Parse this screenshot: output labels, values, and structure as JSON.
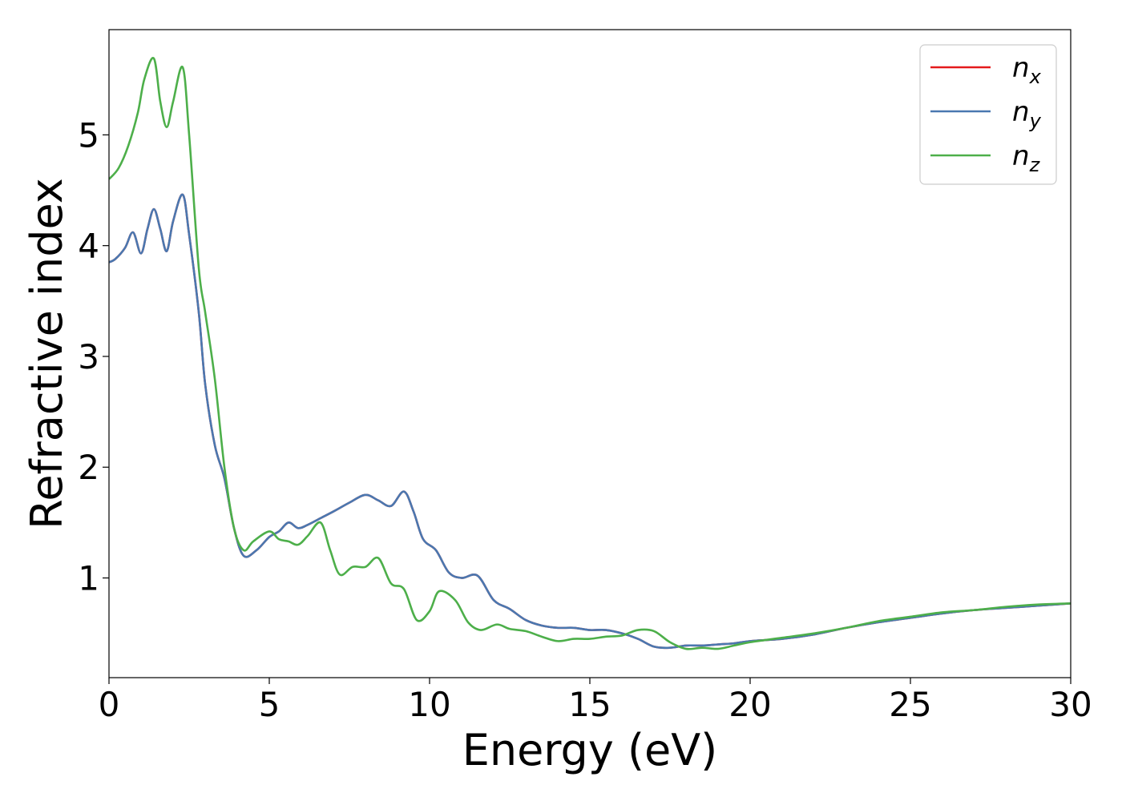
{
  "chart_data": {
    "type": "line",
    "xlabel": "Energy (eV)",
    "ylabel": "Refractive index",
    "xlim": [
      0,
      30
    ],
    "ylim": [
      0.1,
      5.95
    ],
    "x_ticks": [
      0,
      5,
      10,
      15,
      20,
      25,
      30
    ],
    "y_ticks": [
      1,
      2,
      3,
      4,
      5
    ],
    "grid": false,
    "legend_position": "top-right",
    "series": [
      {
        "name": "n_x",
        "legend_base": "n",
        "legend_sub": "x",
        "color": "#e41a1c",
        "x": [
          0,
          0.2,
          0.5,
          0.75,
          1.0,
          1.2,
          1.4,
          1.6,
          1.8,
          2.0,
          2.3,
          2.5,
          2.8,
          3.0,
          3.3,
          3.6,
          3.9,
          4.2,
          4.6,
          5.0,
          5.3,
          5.6,
          5.9,
          6.2,
          6.6,
          7.0,
          7.5,
          8.0,
          8.4,
          8.8,
          9.2,
          9.5,
          9.8,
          10.2,
          10.6,
          11.0,
          11.5,
          12.0,
          12.5,
          13.0,
          13.5,
          14.0,
          14.5,
          15.0,
          15.5,
          16.0,
          16.5,
          17.0,
          17.5,
          18.0,
          18.5,
          19.0,
          19.5,
          20.0,
          21.0,
          22.0,
          23.0,
          24.0,
          25.0,
          26.0,
          27.0,
          28.0,
          29.0,
          30.0
        ],
        "y": [
          3.85,
          3.88,
          3.98,
          4.12,
          3.93,
          4.15,
          4.33,
          4.15,
          3.95,
          4.22,
          4.46,
          4.1,
          3.4,
          2.75,
          2.2,
          1.9,
          1.45,
          1.2,
          1.25,
          1.37,
          1.42,
          1.5,
          1.45,
          1.48,
          1.54,
          1.6,
          1.68,
          1.75,
          1.7,
          1.65,
          1.78,
          1.6,
          1.35,
          1.25,
          1.05,
          1.0,
          1.02,
          0.8,
          0.72,
          0.62,
          0.57,
          0.55,
          0.55,
          0.53,
          0.53,
          0.5,
          0.45,
          0.38,
          0.37,
          0.39,
          0.39,
          0.4,
          0.41,
          0.43,
          0.45,
          0.49,
          0.55,
          0.6,
          0.64,
          0.68,
          0.71,
          0.73,
          0.75,
          0.77
        ]
      },
      {
        "name": "n_y",
        "legend_base": "n",
        "legend_sub": "y",
        "color": "#4a78b0",
        "x": [
          0,
          0.2,
          0.5,
          0.75,
          1.0,
          1.2,
          1.4,
          1.6,
          1.8,
          2.0,
          2.3,
          2.5,
          2.8,
          3.0,
          3.3,
          3.6,
          3.9,
          4.2,
          4.6,
          5.0,
          5.3,
          5.6,
          5.9,
          6.2,
          6.6,
          7.0,
          7.5,
          8.0,
          8.4,
          8.8,
          9.2,
          9.5,
          9.8,
          10.2,
          10.6,
          11.0,
          11.5,
          12.0,
          12.5,
          13.0,
          13.5,
          14.0,
          14.5,
          15.0,
          15.5,
          16.0,
          16.5,
          17.0,
          17.5,
          18.0,
          18.5,
          19.0,
          19.5,
          20.0,
          21.0,
          22.0,
          23.0,
          24.0,
          25.0,
          26.0,
          27.0,
          28.0,
          29.0,
          30.0
        ],
        "y": [
          3.85,
          3.88,
          3.98,
          4.12,
          3.93,
          4.15,
          4.33,
          4.15,
          3.95,
          4.22,
          4.46,
          4.1,
          3.4,
          2.75,
          2.2,
          1.9,
          1.45,
          1.2,
          1.25,
          1.37,
          1.42,
          1.5,
          1.45,
          1.48,
          1.54,
          1.6,
          1.68,
          1.75,
          1.7,
          1.65,
          1.78,
          1.6,
          1.35,
          1.25,
          1.05,
          1.0,
          1.02,
          0.8,
          0.72,
          0.62,
          0.57,
          0.55,
          0.55,
          0.53,
          0.53,
          0.5,
          0.45,
          0.38,
          0.37,
          0.39,
          0.39,
          0.4,
          0.41,
          0.43,
          0.45,
          0.49,
          0.55,
          0.6,
          0.64,
          0.68,
          0.71,
          0.73,
          0.75,
          0.77
        ]
      },
      {
        "name": "n_z",
        "legend_base": "n",
        "legend_sub": "z",
        "color": "#4daf4a",
        "x": [
          0,
          0.3,
          0.6,
          0.9,
          1.1,
          1.4,
          1.6,
          1.8,
          2.0,
          2.3,
          2.5,
          2.8,
          3.0,
          3.3,
          3.6,
          3.9,
          4.2,
          4.5,
          5.0,
          5.3,
          5.6,
          5.9,
          6.2,
          6.6,
          6.9,
          7.2,
          7.6,
          8.0,
          8.4,
          8.8,
          9.2,
          9.6,
          10.0,
          10.3,
          10.8,
          11.2,
          11.6,
          12.1,
          12.5,
          13.0,
          13.5,
          14.0,
          14.5,
          15.0,
          15.5,
          16.0,
          16.5,
          17.0,
          17.5,
          18.0,
          18.5,
          19.0,
          19.5,
          20.0,
          21.0,
          22.0,
          23.0,
          24.0,
          25.0,
          26.0,
          27.0,
          28.0,
          29.0,
          30.0
        ],
        "y": [
          4.6,
          4.7,
          4.9,
          5.2,
          5.5,
          5.69,
          5.3,
          5.07,
          5.3,
          5.61,
          5.0,
          3.8,
          3.4,
          2.8,
          2.0,
          1.45,
          1.25,
          1.33,
          1.42,
          1.35,
          1.33,
          1.3,
          1.38,
          1.5,
          1.25,
          1.03,
          1.1,
          1.1,
          1.18,
          0.95,
          0.9,
          0.62,
          0.7,
          0.88,
          0.8,
          0.6,
          0.53,
          0.58,
          0.54,
          0.52,
          0.47,
          0.43,
          0.45,
          0.45,
          0.47,
          0.48,
          0.53,
          0.52,
          0.42,
          0.36,
          0.37,
          0.36,
          0.39,
          0.42,
          0.46,
          0.5,
          0.55,
          0.61,
          0.65,
          0.69,
          0.71,
          0.74,
          0.76,
          0.77
        ]
      }
    ]
  }
}
